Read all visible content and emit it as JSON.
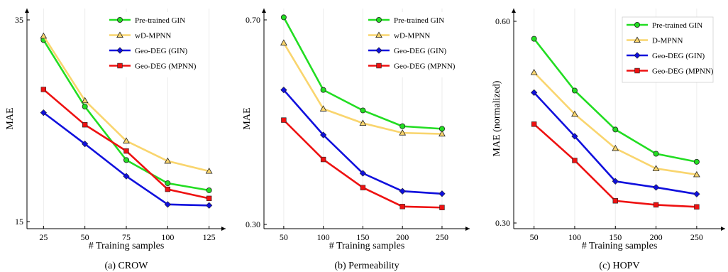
{
  "chart_data": [
    {
      "type": "line",
      "caption": "(a) CROW",
      "xlabel": "# Training samples",
      "ylabel": "MAE",
      "x": [
        25,
        50,
        75,
        100,
        125
      ],
      "xlim": [
        15,
        135
      ],
      "ylim": [
        15,
        35
      ],
      "xticks": [
        "25",
        "50",
        "75",
        "100",
        "125"
      ],
      "yticks": [
        {
          "value": 35,
          "label": "35"
        },
        {
          "value": 15,
          "label": "15"
        }
      ],
      "legend_position": "top-right",
      "series": [
        {
          "name": "Pre-trained GIN",
          "values": [
            33.0,
            26.4,
            21.1,
            18.8,
            18.1
          ],
          "color": "#22dd22",
          "marker": "circle"
        },
        {
          "name": "wD-MPNN",
          "values": [
            33.4,
            27.0,
            23.0,
            21.0,
            20.0
          ],
          "color": "#f9d56e",
          "marker": "triangle"
        },
        {
          "name": "Geo-DEG (GIN)",
          "values": [
            25.8,
            22.7,
            19.5,
            16.7,
            16.6
          ],
          "color": "#1010dd",
          "marker": "diamond"
        },
        {
          "name": "Geo-DEG (MPNN)",
          "values": [
            28.1,
            24.6,
            22.0,
            18.2,
            17.3
          ],
          "color": "#ee1111",
          "marker": "square"
        }
      ]
    },
    {
      "type": "line",
      "caption": "(b) Permeability",
      "xlabel": "# Training samples",
      "ylabel": "MAE",
      "x": [
        50,
        100,
        150,
        200,
        250
      ],
      "xlim": [
        25,
        285
      ],
      "ylim": [
        0.3,
        0.7
      ],
      "xticks": [
        "50",
        "100",
        "150",
        "200",
        "250"
      ],
      "yticks": [
        {
          "value": 0.7,
          "label": "0.70"
        },
        {
          "value": 0.3,
          "label": "0.30"
        }
      ],
      "legend_position": "top-right",
      "series": [
        {
          "name": "Pre-trained GIN",
          "values": [
            0.705,
            0.563,
            0.523,
            0.492,
            0.487
          ],
          "color": "#22dd22",
          "marker": "circle"
        },
        {
          "name": "wD-MPNN",
          "values": [
            0.655,
            0.526,
            0.498,
            0.479,
            0.477
          ],
          "color": "#f9d56e",
          "marker": "triangle"
        },
        {
          "name": "Geo-DEG (GIN)",
          "values": [
            0.563,
            0.475,
            0.4,
            0.365,
            0.36
          ],
          "color": "#1010dd",
          "marker": "diamond"
        },
        {
          "name": "Geo-DEG (MPNN)",
          "values": [
            0.504,
            0.427,
            0.372,
            0.335,
            0.333
          ],
          "color": "#ee1111",
          "marker": "square"
        }
      ]
    },
    {
      "type": "line",
      "caption": "(c) HOPV",
      "xlabel": "# Training samples",
      "ylabel": "MAE (normalized)",
      "x": [
        50,
        100,
        150,
        200,
        250
      ],
      "xlim": [
        25,
        285
      ],
      "ylim": [
        0.3,
        0.6
      ],
      "xticks": [
        "50",
        "100",
        "150",
        "200",
        "250"
      ],
      "yticks": [
        {
          "value": 0.6,
          "label": "0.60"
        },
        {
          "value": 0.3,
          "label": "0.30"
        }
      ],
      "legend_position": "top-right",
      "series": [
        {
          "name": "Pre-trained GIN",
          "values": [
            0.574,
            0.497,
            0.439,
            0.403,
            0.391
          ],
          "color": "#22dd22",
          "marker": "circle"
        },
        {
          "name": "D-MPNN",
          "values": [
            0.524,
            0.462,
            0.411,
            0.381,
            0.372
          ],
          "color": "#f9d56e",
          "marker": "triangle"
        },
        {
          "name": "Geo-DEG (GIN)",
          "values": [
            0.494,
            0.429,
            0.362,
            0.353,
            0.343
          ],
          "color": "#1010dd",
          "marker": "diamond"
        },
        {
          "name": "Geo-DEG (MPNN)",
          "values": [
            0.447,
            0.393,
            0.333,
            0.327,
            0.324
          ],
          "color": "#ee1111",
          "marker": "square"
        }
      ]
    }
  ]
}
